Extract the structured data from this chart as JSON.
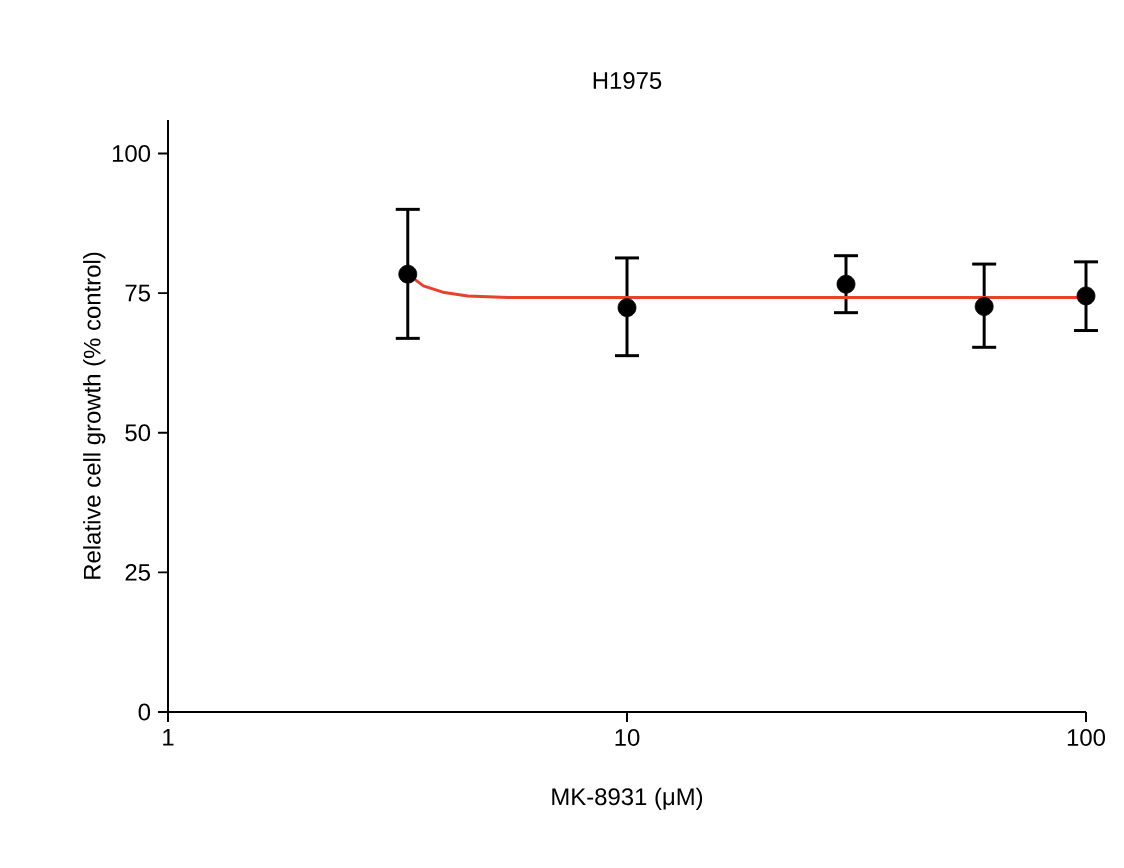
{
  "chart_data": {
    "type": "scatter",
    "title": "H1975",
    "xlabel": "MK-8931 (μM)",
    "ylabel": "Relative cell growth (% control)",
    "log": "x",
    "xlim": [
      1,
      100
    ],
    "xticks": [
      1,
      10,
      100
    ],
    "ylim": [
      0,
      106
    ],
    "yticks": [
      0,
      25,
      50,
      75,
      100
    ],
    "series": [
      {
        "color": "#000000",
        "marker": "circle",
        "x": [
          3.33,
          10,
          30,
          60,
          100
        ],
        "values": [
          78.4,
          72.4,
          76.6,
          72.6,
          74.5
        ],
        "errors": [
          [
            66.9,
            90.0
          ],
          [
            63.8,
            81.3
          ],
          [
            71.5,
            81.7
          ],
          [
            65.3,
            80.2
          ],
          [
            68.3,
            80.6
          ]
        ]
      },
      {
        "type": "line",
        "color": "#e8412c",
        "marker": "none",
        "line_style": "solid",
        "x": [
          3.33,
          3.6,
          4,
          4.5,
          5.5,
          100
        ],
        "values": [
          78.4,
          76.3,
          75.1,
          74.5,
          74.2,
          74.2
        ]
      }
    ]
  }
}
